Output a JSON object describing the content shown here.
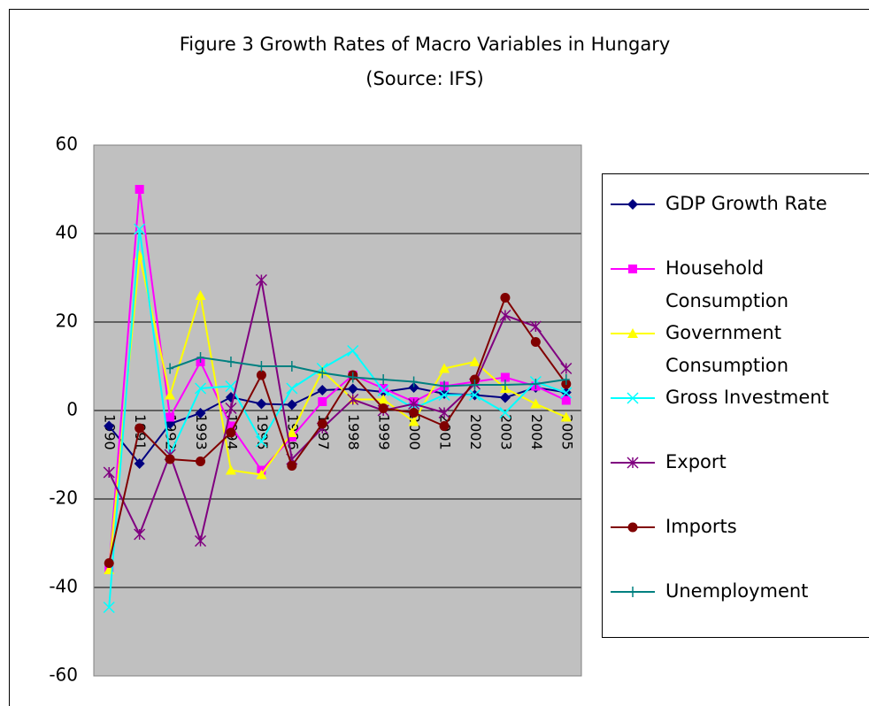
{
  "chart_data": {
    "type": "line",
    "title": "Figure 3 Growth Rates of Macro Variables in Hungary",
    "subtitle": "(Source: IFS)",
    "categories": [
      "1990",
      "1991",
      "1992",
      "1993",
      "1994",
      "1995",
      "1996",
      "1997",
      "1998",
      "1999",
      "2000",
      "2001",
      "2002",
      "2003",
      "2004",
      "2005"
    ],
    "ylim": [
      -60,
      60
    ],
    "yticks": [
      -60,
      -40,
      -20,
      0,
      20,
      40,
      60
    ],
    "grid": true,
    "legend": "right",
    "series": [
      {
        "name": "GDP Growth Rate",
        "color": "#000080",
        "marker": "diamond",
        "values": [
          -3.5,
          -12,
          -3,
          -0.6,
          3,
          1.5,
          1.3,
          4.6,
          4.9,
          4.2,
          5.2,
          3.8,
          3.5,
          2.9,
          5.2,
          4.1
        ]
      },
      {
        "name": "Household Consumption",
        "color": "#ff00ff",
        "marker": "square",
        "values": [
          -36,
          50,
          -1.5,
          11,
          -3.5,
          -13.5,
          -6,
          2,
          8,
          5,
          2,
          5.5,
          6.5,
          7.5,
          5.5,
          2.3
        ]
      },
      {
        "name": "Government Consumption",
        "color": "#ffff00",
        "marker": "triangle",
        "values": [
          -36,
          35,
          3.5,
          26,
          -13.5,
          -14.5,
          -5,
          9,
          2.5,
          2.5,
          -2.5,
          9.5,
          11,
          5,
          1.5,
          -1.5
        ]
      },
      {
        "name": "Gross Investment",
        "color": "#00ffff",
        "marker": "x",
        "values": [
          -44.5,
          41,
          -10,
          5,
          5.5,
          -7,
          5,
          9.5,
          13.5,
          4.5,
          0.5,
          3.5,
          3.5,
          -0.5,
          6.5,
          4
        ]
      },
      {
        "name": "Export",
        "color": "#800080",
        "marker": "asterisk",
        "values": [
          -14,
          -28,
          -10,
          -29.5,
          0.5,
          29.5,
          -11,
          -4,
          2.5,
          0,
          1.5,
          -0.5,
          6,
          21.5,
          19,
          9.5
        ]
      },
      {
        "name": "Imports",
        "color": "#800000",
        "marker": "circle",
        "values": [
          -34.5,
          -4,
          -11,
          -11.5,
          -5,
          8,
          -12.5,
          -3,
          8,
          0.5,
          -0.5,
          -3.5,
          7,
          25.5,
          15.5,
          6
        ]
      },
      {
        "name": "Unemployment",
        "color": "#008080",
        "marker": "plus",
        "values": [
          null,
          null,
          9.5,
          12,
          11,
          10,
          10,
          8.5,
          7.5,
          7,
          6.5,
          5.5,
          5.8,
          5.8,
          6,
          7
        ]
      }
    ]
  }
}
